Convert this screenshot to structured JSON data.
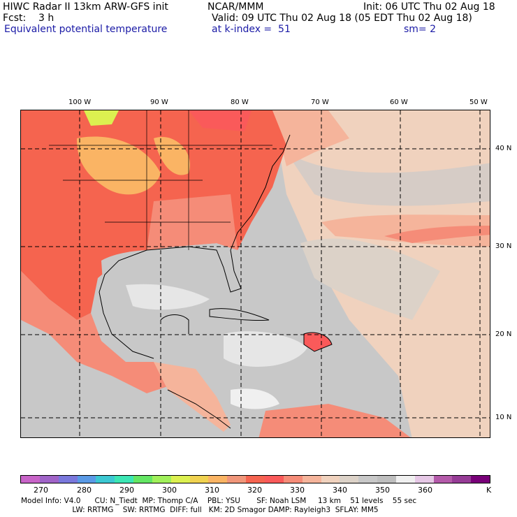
{
  "header": {
    "title": "HIWC Radar II 13km ARW-GFS init",
    "org": "NCAR/MMM",
    "init": "Init: 06 UTC Thu 02 Aug 18",
    "fcst": "Fcst:    3 h",
    "valid": "Valid: 09 UTC Thu 02 Aug 18 (05 EDT Thu 02 Aug 18)",
    "field": "Equivalent potential temperature",
    "level": "at k-index =  51",
    "smooth": "sm= 2"
  },
  "lon_labels": [
    "100 W",
    "90 W",
    "80 W",
    "70 W",
    "60 W",
    "50 W"
  ],
  "lat_labels": [
    "40 N",
    "30 N",
    "20 N",
    "10 N"
  ],
  "colorbar": {
    "colors": [
      "#c864c8",
      "#a064c8",
      "#7a78dc",
      "#5a9ae6",
      "#3cc8d2",
      "#3ce6b4",
      "#64e664",
      "#a0f05a",
      "#dcf050",
      "#f0d250",
      "#fab464",
      "#f0967a",
      "#f56450",
      "#fa5a5a",
      "#f58c78",
      "#f5b49b",
      "#f0d2be",
      "#dcd2c8",
      "#c8c8c8",
      "#bebebe",
      "#f0f0f0",
      "#e6c8e6",
      "#b45aaa",
      "#963c96",
      "#780078"
    ],
    "labels": [
      "270",
      "280",
      "290",
      "300",
      "310",
      "320",
      "330",
      "340",
      "350",
      "360",
      "K"
    ]
  },
  "footer": {
    "line1": "Model Info: V4.0      CU: N_Tiedt  MP: Thomp C/A    PBL: YSU       SF: Noah LSM     13 km    51 levels    55 sec",
    "line2": "                      LW: RRTMG    SW: RRTMG  DIFF: full   KM: 2D Smagor DAMP: Rayleigh3  SFLAY: MM5"
  }
}
